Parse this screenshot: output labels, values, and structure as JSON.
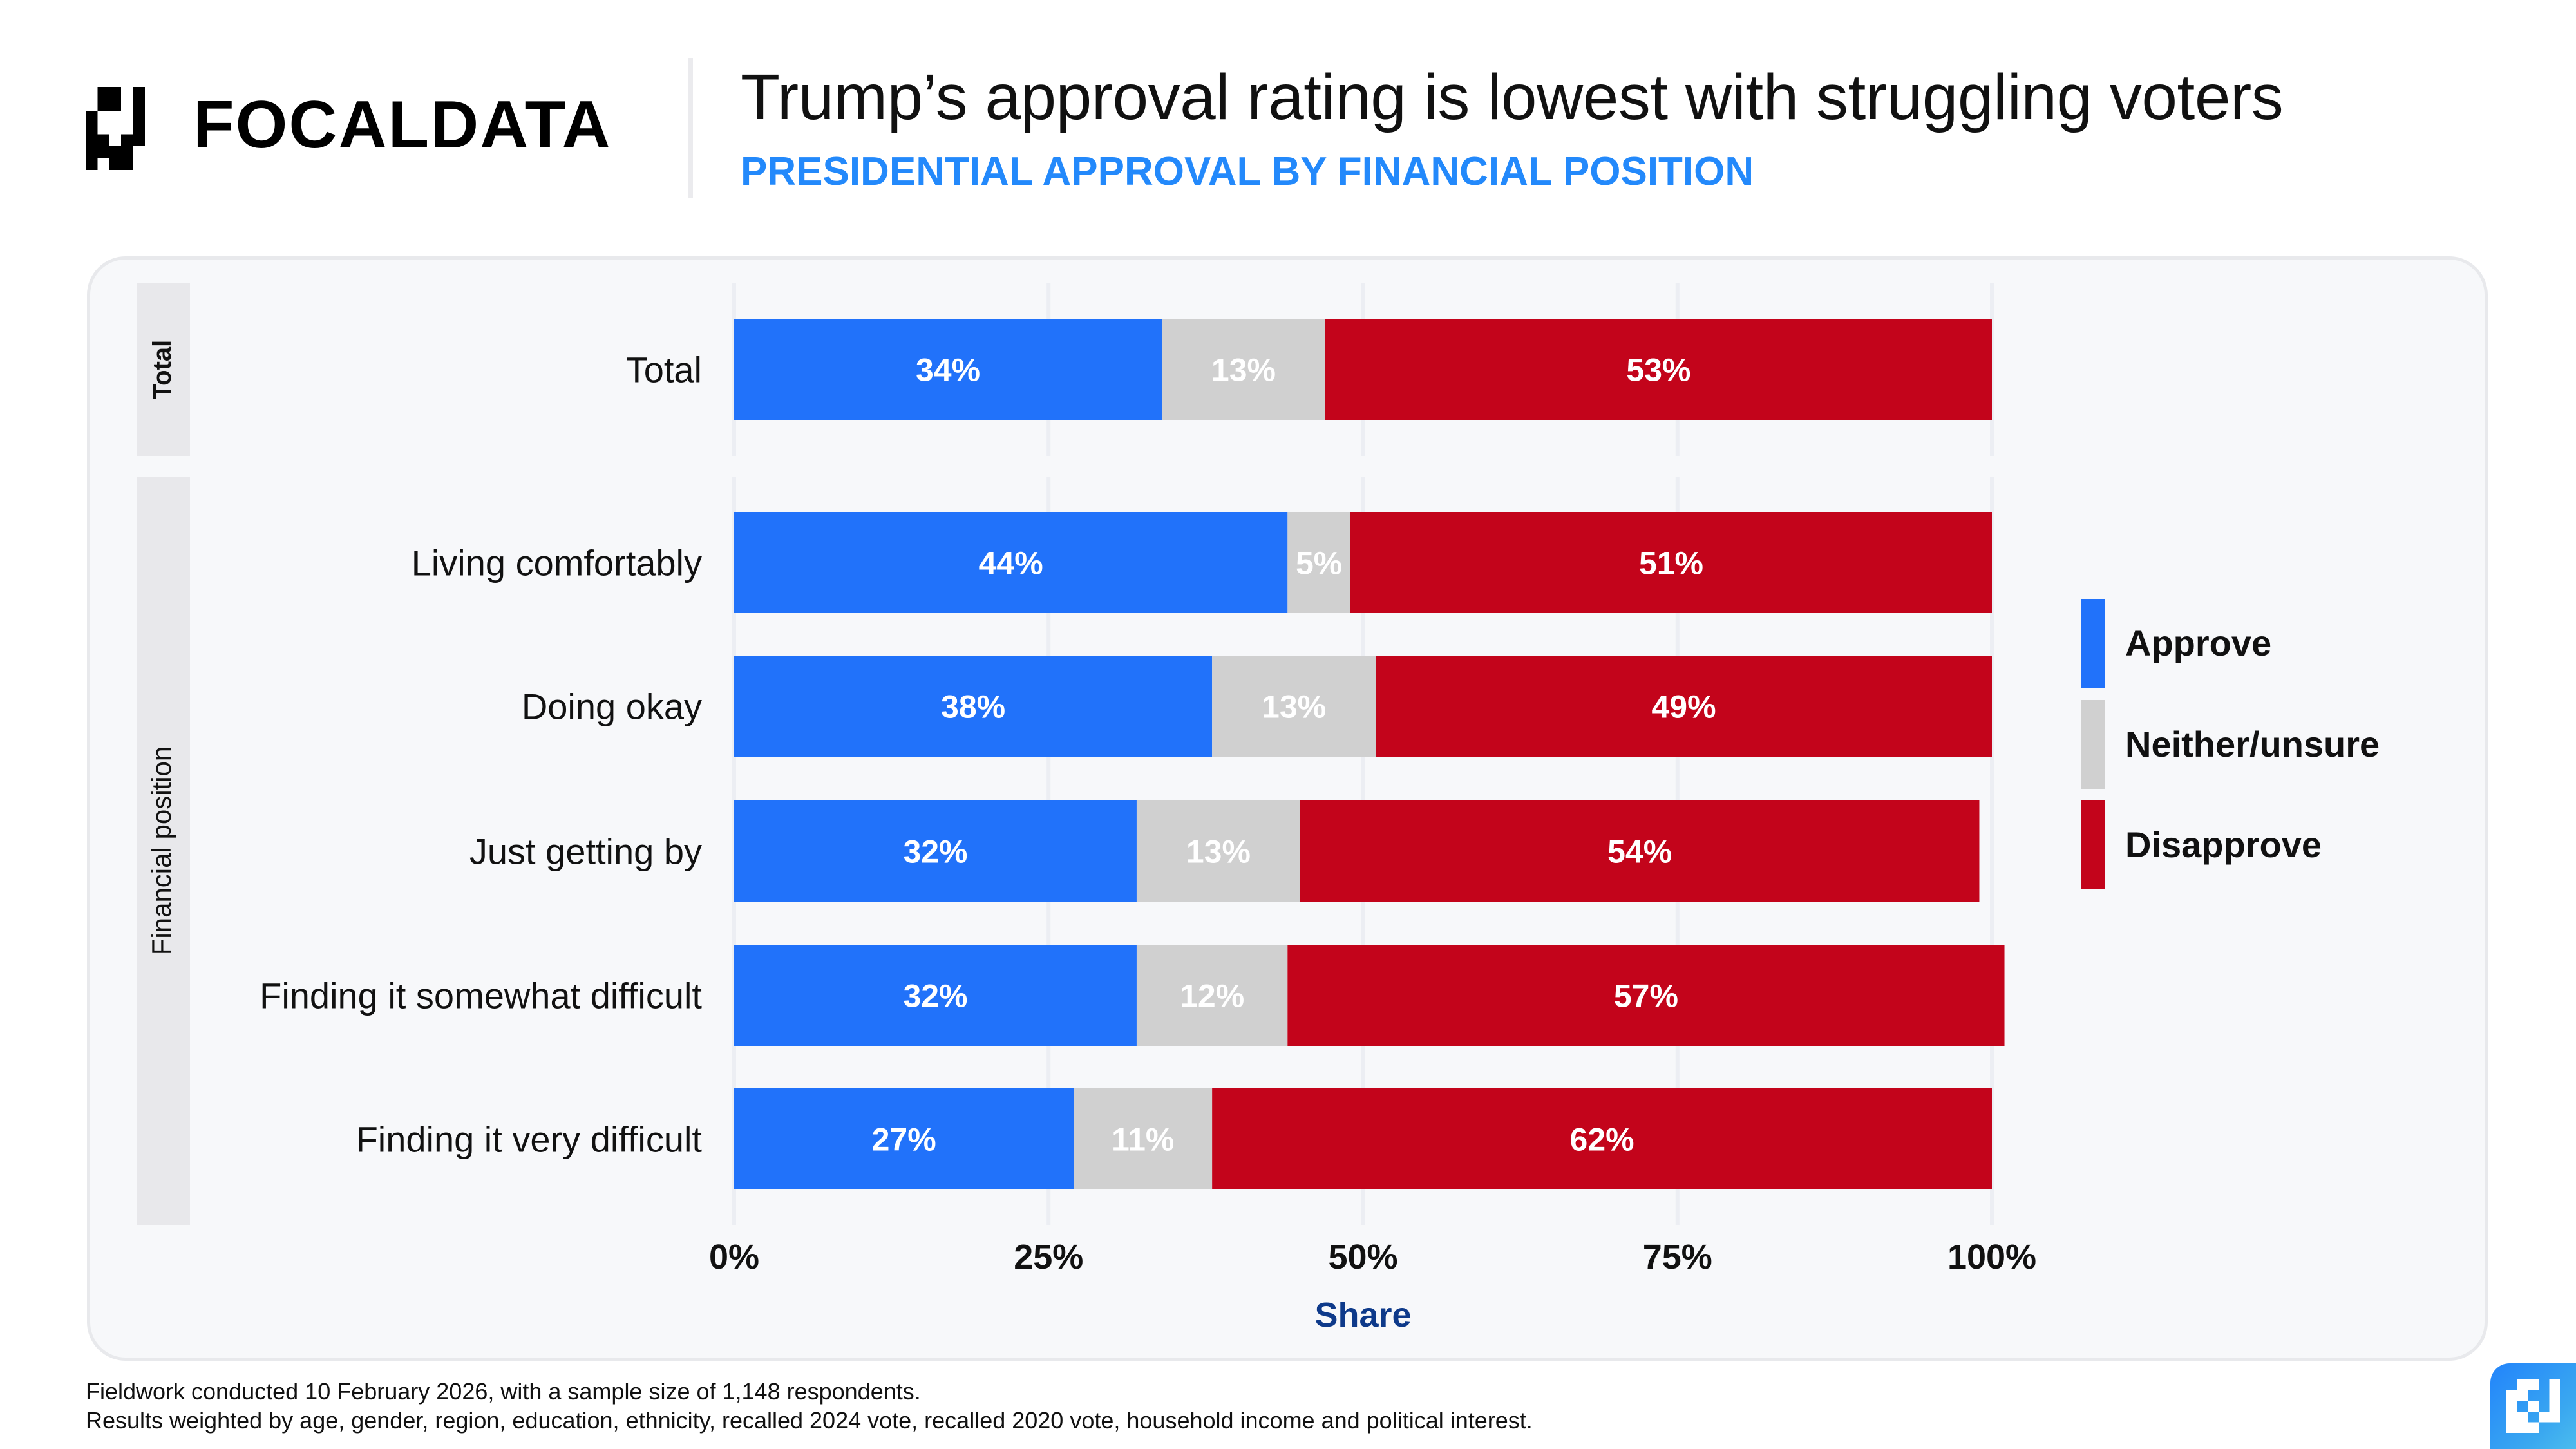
{
  "header": {
    "brand": "FOCALDATA",
    "title": "Trump’s approval rating is lowest with struggling voters",
    "subtitle": "PRESIDENTIAL APPROVAL BY FINANCIAL POSITION"
  },
  "footer": {
    "line1": "Fieldwork conducted 10 February 2026, with a sample size of 1,148 respondents.",
    "line2": "Results weighted by age, gender, region, education, ethnicity, recalled 2024 vote, recalled 2020 vote, household income and political interest."
  },
  "colors": {
    "approve": "#2172fa",
    "neither": "#d0d0d0",
    "disapprove": "#c3041b",
    "subtitle": "#2389fb",
    "axis_title": "#0e3a8a",
    "facet_strip": "#e8e8eb",
    "gridline": "#eceef3",
    "panel_bg": "#f7f8fa"
  },
  "chart_data": {
    "type": "bar",
    "orientation": "horizontal",
    "stacked": true,
    "title": "Trump’s approval rating is lowest with struggling voters",
    "subtitle": "PRESIDENTIAL APPROVAL BY FINANCIAL POSITION",
    "xlabel": "Share",
    "ylabel": "",
    "xlim": [
      0,
      100
    ],
    "x_ticks": [
      "0%",
      "25%",
      "50%",
      "75%",
      "100%"
    ],
    "x_tick_values": [
      0,
      25,
      50,
      75,
      100
    ],
    "grid": true,
    "legend_position": "right",
    "facets": [
      {
        "label": "Total",
        "categories": [
          "Total"
        ]
      },
      {
        "label": "Financial position",
        "categories": [
          "Living comfortably",
          "Doing okay",
          "Just getting by",
          "Finding it somewhat difficult",
          "Finding it very difficult"
        ]
      }
    ],
    "categories": [
      "Total",
      "Living comfortably",
      "Doing okay",
      "Just getting by",
      "Finding it somewhat difficult",
      "Finding it very difficult"
    ],
    "series": [
      {
        "name": "Approve",
        "color": "#2172fa",
        "values": [
          34,
          44,
          38,
          32,
          32,
          27
        ]
      },
      {
        "name": "Neither/unsure",
        "color": "#d0d0d0",
        "values": [
          13,
          5,
          13,
          13,
          12,
          11
        ]
      },
      {
        "name": "Disapprove",
        "color": "#c3041b",
        "values": [
          53,
          51,
          49,
          54,
          57,
          62
        ]
      }
    ],
    "data_labels": [
      [
        "34%",
        "13%",
        "53%"
      ],
      [
        "44%",
        "5%",
        "51%"
      ],
      [
        "38%",
        "13%",
        "49%"
      ],
      [
        "32%",
        "13%",
        "54%"
      ],
      [
        "32%",
        "12%",
        "57%"
      ],
      [
        "27%",
        "11%",
        "62%"
      ]
    ]
  }
}
